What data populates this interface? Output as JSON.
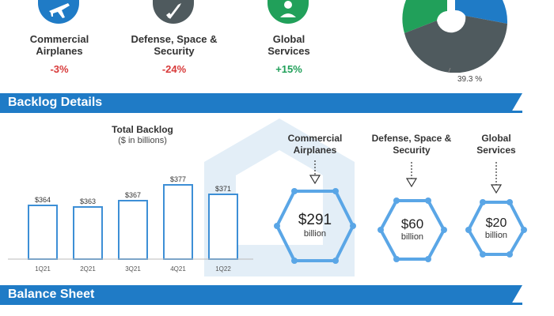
{
  "segments": [
    {
      "name": "Commercial\nAirplanes",
      "change": "-3%",
      "icon": "airplane-icon",
      "color": "#1f7bc6"
    },
    {
      "name": "Defense, Space &\nSecurity",
      "change": "-24%",
      "icon": "rocket-icon",
      "color": "#4f5a5e"
    },
    {
      "name": "Global\nServices",
      "change": "+15%",
      "icon": "service-icon",
      "color": "#21a05a"
    }
  ],
  "pie_label": "39.3 %",
  "sections": {
    "backlog": "Backlog Details",
    "balance": "Balance Sheet"
  },
  "colors": {
    "accent": "#1f7bc6",
    "negative": "#d83a3a",
    "positive": "#21a05a",
    "dark": "#4f5a5e"
  },
  "chart_data": {
    "type": "bar",
    "title": "Total Backlog",
    "subtitle": "($ in billions)",
    "categories": [
      "1Q21",
      "2Q21",
      "3Q21",
      "4Q21",
      "1Q22"
    ],
    "values": [
      364,
      363,
      367,
      377,
      371
    ],
    "value_labels": [
      "$364",
      "$363",
      "$367",
      "$377",
      "$371"
    ],
    "grid": false
  },
  "backlog_segments": [
    {
      "name": "Commercial\nAirplanes",
      "value": "$291",
      "unit": "billion"
    },
    {
      "name": "Defense, Space &\nSecurity",
      "value": "$60",
      "unit": "billion"
    },
    {
      "name": "Global\nServices",
      "value": "$20",
      "unit": "billion"
    }
  ]
}
